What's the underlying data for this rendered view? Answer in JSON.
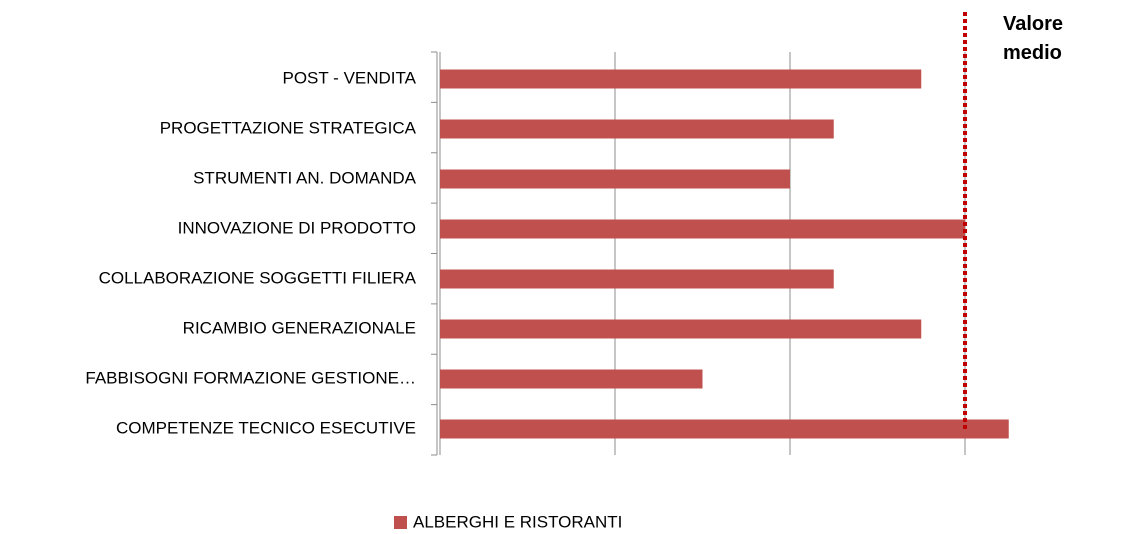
{
  "chart_data": {
    "type": "hbar",
    "categories": [
      "POST - VENDITA",
      "PROGETTAZIONE STRATEGICA",
      "STRUMENTI AN. DOMANDA",
      "INNOVAZIONE DI PRODOTTO",
      "COLLABORAZIONE SOGGETTI FILIERA",
      "RICAMBIO GENERAZIONALE",
      "FABBISOGNI FORMAZIONE GESTIONE…",
      "COMPETENZE TECNICO ESECUTIVE"
    ],
    "series": [
      {
        "name": "ALBERGHI E RISTORANTI",
        "color": "#c0504d",
        "values": [
          2.75,
          2.25,
          2,
          3,
          2.25,
          2.75,
          1.5,
          3.25
        ]
      }
    ],
    "xlim": [
      0,
      4
    ],
    "xticks": [
      0,
      1,
      2,
      3
    ],
    "tick_labels": false,
    "grid": true,
    "reference_line": {
      "value": 3,
      "label": "Valore medio",
      "color": "#c00000"
    },
    "legend": "bottom"
  }
}
